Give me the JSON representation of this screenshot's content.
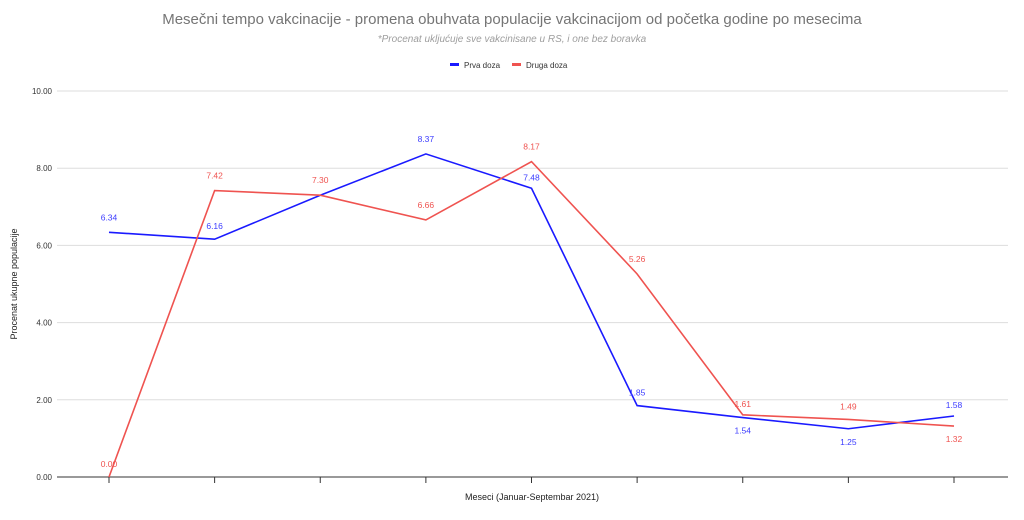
{
  "chart_data": {
    "type": "line",
    "title": "Mesečni tempo vakcinacije - promena obuhvata populacije vakcinacijom od početka godine po mesecima",
    "subtitle": "*Procenat ukljućuje sve vakcinisane u RS, i one bez boravka",
    "xlabel": "Meseci (Januar-Septembar 2021)",
    "ylabel": "Procenat ukupne populacije",
    "ylim": [
      0,
      10
    ],
    "yticks": [
      "0.00",
      "2.00",
      "4.00",
      "6.00",
      "8.00",
      "10.00"
    ],
    "grid": true,
    "legend_position": "top",
    "point_count": 9,
    "series": [
      {
        "name": "Prva doza",
        "color": "#1a1aff",
        "values": [
          6.34,
          6.16,
          7.3,
          8.37,
          7.48,
          1.85,
          1.54,
          1.25,
          1.58
        ]
      },
      {
        "name": "Druga doza",
        "color": "#ef5350",
        "values": [
          0.0,
          7.42,
          7.3,
          6.66,
          8.17,
          5.26,
          1.61,
          1.49,
          1.32
        ]
      }
    ],
    "data_labels": {
      "Prva doza": [
        "6.34",
        "6.16",
        "",
        "8.37",
        "7.48",
        "1.85",
        "1.54",
        "1.25",
        "1.58"
      ],
      "Druga doza": [
        "0.00",
        "7.42",
        "7.30",
        "6.66",
        "8.17",
        "5.26",
        "1.61",
        "1.49",
        "1.32"
      ]
    }
  }
}
